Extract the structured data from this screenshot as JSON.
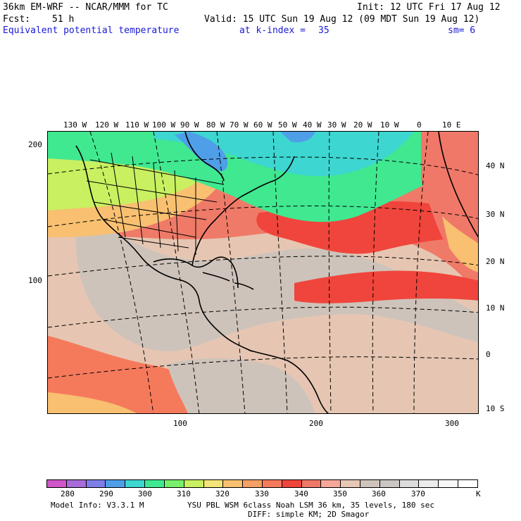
{
  "header": {
    "model_line": "36km EM-WRF -- NCAR/MMM for TC",
    "init_line": "Init: 12 UTC Fri 17 Aug 12",
    "fcst_label": "Fcst:",
    "fcst_value": "51 h",
    "valid_line": "Valid: 15 UTC Sun 19 Aug 12 (09 MDT Sun 19 Aug 12)",
    "field_title": "Equivalent potential temperature",
    "level_label": "at k-index =",
    "level_value": "35",
    "smooth_label": "sm= 6"
  },
  "map": {
    "longitude_labels": [
      "130 W",
      "120 W",
      "110 W",
      "100 W",
      "90 W",
      "80 W",
      "70 W",
      "60 W",
      "50 W",
      "40 W",
      "30 W",
      "20 W",
      "10 W",
      "0",
      "10 E"
    ],
    "latitude_labels": [
      "40 N",
      "30 N",
      "20 N",
      "10 N",
      "0",
      "10 S"
    ],
    "y_grid_labels": [
      "200",
      "100"
    ],
    "x_grid_labels": [
      "100",
      "200",
      "300"
    ]
  },
  "legend": {
    "values": [
      "280",
      "290",
      "300",
      "310",
      "320",
      "330",
      "340",
      "350",
      "360",
      "370"
    ],
    "unit": "K",
    "colors": [
      "#d055c8",
      "#a86bd8",
      "#7d7ee8",
      "#4f9ee8",
      "#3dd6d0",
      "#40e890",
      "#79ee6c",
      "#c8f060",
      "#f5e478",
      "#f8c070",
      "#f5a064",
      "#f57a5c",
      "#f0453c",
      "#f07868",
      "#f5a898",
      "#e8c8b4",
      "#cfc4bc",
      "#c9c6c3",
      "#dcdcdc",
      "#ececec",
      "#f8f8f8",
      "#ffffff"
    ]
  },
  "footer": {
    "model_info": "Model Info: V3.3.1 M",
    "physics": "YSU PBL  WSM 6class  Noah LSM  36 km,   35 levels,  180 sec",
    "diffusion": "DIFF: simple KM; 2D Smagor"
  }
}
